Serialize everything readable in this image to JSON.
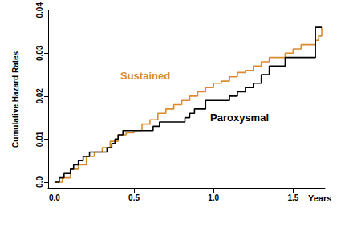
{
  "chart_data": {
    "type": "step",
    "x_label": "Years",
    "y_label": "Cumulative Hazard Rates",
    "xlim": [
      -0.04,
      1.7
    ],
    "xticks": [
      {
        "value": 0,
        "label": "0.0"
      },
      0.5,
      {
        "value": 1,
        "label": "1.0"
      },
      1.5
    ],
    "ylim": [
      -0.0015,
      0.04
    ],
    "yticks": [
      {
        "value": 0,
        "label": "0.0"
      },
      0.01,
      0.02,
      0.03,
      0.04
    ],
    "grid": false,
    "series": [
      {
        "name": "Sustained",
        "color": "#d98c2e",
        "x": [
          0,
          0.05,
          0.1,
          0.15,
          0.2,
          0.25,
          0.3,
          0.35,
          0.4,
          0.45,
          0.5,
          0.55,
          0.6,
          0.65,
          0.7,
          0.75,
          0.8,
          0.85,
          0.9,
          0.95,
          1.0,
          1.05,
          1.1,
          1.15,
          1.2,
          1.25,
          1.3,
          1.35,
          1.4,
          1.45,
          1.5,
          1.55,
          1.6,
          1.64,
          1.66,
          1.68
        ],
        "values": [
          0,
          0.001,
          0.003,
          0.004,
          0.006,
          0.007,
          0.008,
          0.0095,
          0.011,
          0.0115,
          0.012,
          0.0135,
          0.0145,
          0.016,
          0.017,
          0.018,
          0.019,
          0.02,
          0.021,
          0.022,
          0.023,
          0.0235,
          0.0245,
          0.0255,
          0.026,
          0.027,
          0.028,
          0.029,
          0.029,
          0.03,
          0.031,
          0.032,
          0.032,
          0.033,
          0.034,
          0.036
        ]
      },
      {
        "name": "Paroxysmal",
        "color": "#000000",
        "x": [
          0,
          0.03,
          0.06,
          0.1,
          0.12,
          0.15,
          0.18,
          0.22,
          0.33,
          0.36,
          0.38,
          0.4,
          0.43,
          0.62,
          0.66,
          0.82,
          0.85,
          0.88,
          0.95,
          1.1,
          1.15,
          1.2,
          1.25,
          1.3,
          1.35,
          1.45,
          1.64,
          1.68
        ],
        "values": [
          0,
          0.001,
          0.002,
          0.003,
          0.004,
          0.005,
          0.006,
          0.007,
          0.008,
          0.009,
          0.01,
          0.011,
          0.012,
          0.013,
          0.014,
          0.015,
          0.016,
          0.017,
          0.019,
          0.02,
          0.021,
          0.022,
          0.023,
          0.025,
          0.027,
          0.029,
          0.036,
          0.036
        ]
      }
    ]
  }
}
